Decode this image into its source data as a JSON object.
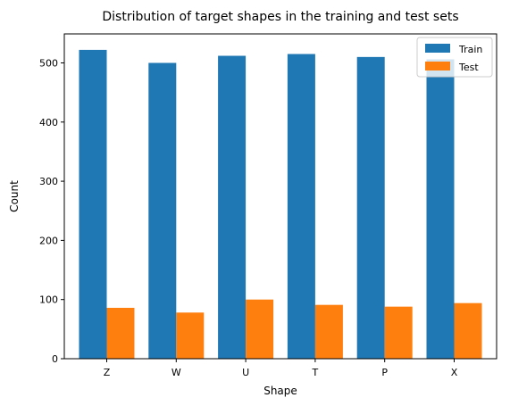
{
  "chart_data": {
    "type": "bar",
    "title": "Distribution of target shapes in the training and test sets",
    "xlabel": "Shape",
    "ylabel": "Count",
    "categories": [
      "Z",
      "W",
      "U",
      "T",
      "P",
      "X"
    ],
    "series": [
      {
        "name": "Train",
        "color": "#1f77b4",
        "values": [
          522,
          500,
          512,
          515,
          510,
          506
        ]
      },
      {
        "name": "Test",
        "color": "#ff7f0e",
        "values": [
          86,
          78,
          100,
          91,
          88,
          94
        ]
      }
    ],
    "ylim": [
      0,
      549
    ],
    "yticks": [
      0,
      100,
      200,
      300,
      400,
      500
    ],
    "grid": false,
    "legend_position": "top-right"
  }
}
